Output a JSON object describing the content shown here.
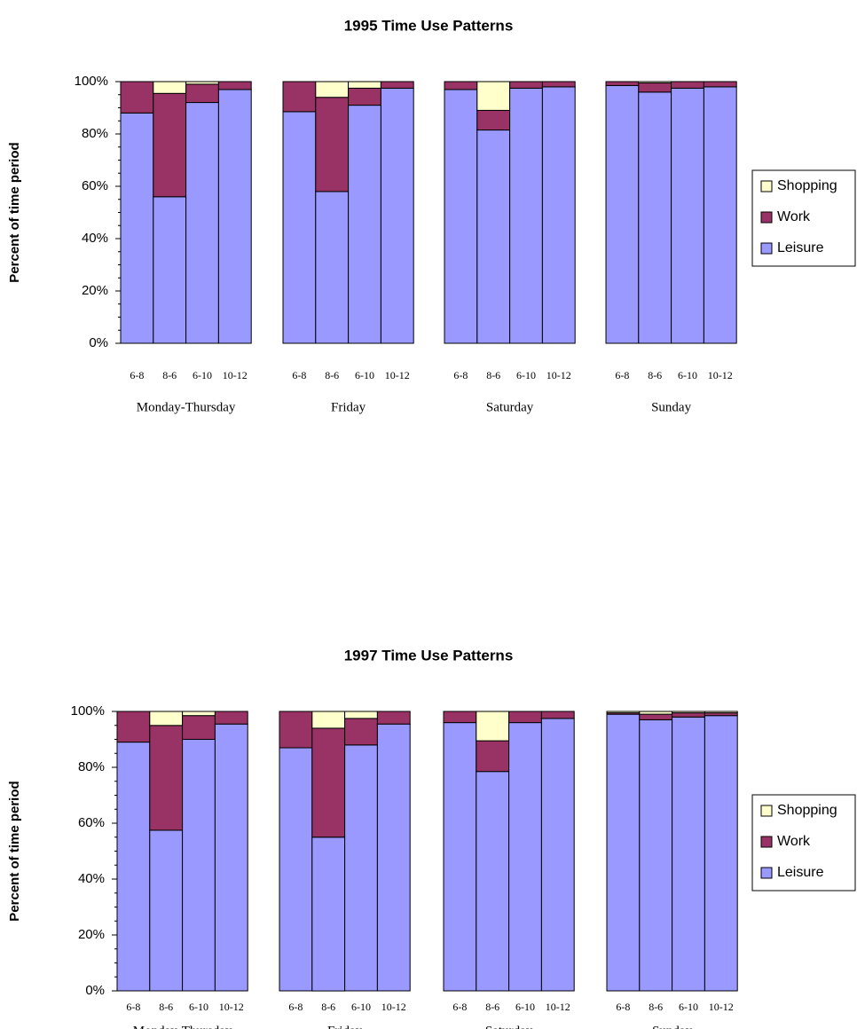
{
  "chart_data": [
    {
      "type": "bar",
      "stacked": true,
      "percent": true,
      "title": "1995 Time Use Patterns",
      "ylabel": "Percent of time period",
      "ylim": [
        0,
        100
      ],
      "yticks": [
        "0%",
        "20%",
        "40%",
        "60%",
        "80%",
        "100%"
      ],
      "legend_position": "right",
      "groups": [
        {
          "name": "Monday-Thursday",
          "categories": [
            "6-8",
            "8-6",
            "6-10",
            "10-12"
          ]
        },
        {
          "name": "Friday",
          "categories": [
            "6-8",
            "8-6",
            "6-10",
            "10-12"
          ]
        },
        {
          "name": "Saturday",
          "categories": [
            "6-8",
            "8-6",
            "6-10",
            "10-12"
          ]
        },
        {
          "name": "Sunday",
          "categories": [
            "6-8",
            "8-6",
            "6-10",
            "10-12"
          ]
        }
      ],
      "series": [
        {
          "name": "Leisure",
          "color": "#9999FF",
          "values": [
            [
              88,
              56,
              92,
              97
            ],
            [
              88.5,
              58,
              91,
              97.5
            ],
            [
              97,
              81.5,
              97.5,
              98
            ],
            [
              98.5,
              96,
              97.5,
              98
            ]
          ]
        },
        {
          "name": "Work",
          "color": "#993366",
          "values": [
            [
              12,
              39.5,
              7,
              3
            ],
            [
              11.5,
              36,
              6.5,
              2.5
            ],
            [
              3,
              7.5,
              2.5,
              2
            ],
            [
              1.5,
              3.5,
              2.5,
              2
            ]
          ]
        },
        {
          "name": "Shopping",
          "color": "#FFFFCC",
          "values": [
            [
              0,
              4.5,
              1,
              0
            ],
            [
              0,
              6,
              2.5,
              0
            ],
            [
              0,
              11,
              0,
              0
            ],
            [
              0,
              0.5,
              0,
              0
            ]
          ]
        }
      ]
    },
    {
      "type": "bar",
      "stacked": true,
      "percent": true,
      "title": "1997 Time Use Patterns",
      "ylabel": "Percent of time period",
      "ylim": [
        0,
        100
      ],
      "yticks": [
        "0%",
        "20%",
        "40%",
        "60%",
        "80%",
        "100%"
      ],
      "legend_position": "right",
      "groups": [
        {
          "name": "Monday-Thursday",
          "categories": [
            "6-8",
            "8-6",
            "6-10",
            "10-12"
          ]
        },
        {
          "name": "Friday",
          "categories": [
            "6-8",
            "8-6",
            "6-10",
            "10-12"
          ]
        },
        {
          "name": "Saturday",
          "categories": [
            "6-8",
            "8-6",
            "6-10",
            "10-12"
          ]
        },
        {
          "name": "Sunday",
          "categories": [
            "6-8",
            "8-6",
            "6-10",
            "10-12"
          ]
        }
      ],
      "series": [
        {
          "name": "Leisure",
          "color": "#9999FF",
          "values": [
            [
              89,
              57.5,
              90,
              95.5
            ],
            [
              87,
              55,
              88,
              95.5
            ],
            [
              96,
              78.5,
              96,
              97.5
            ],
            [
              99,
              97,
              98,
              98.5
            ]
          ]
        },
        {
          "name": "Work",
          "color": "#993366",
          "values": [
            [
              11,
              37.5,
              8.5,
              4.5
            ],
            [
              13,
              39,
              9.5,
              4.5
            ],
            [
              4,
              11,
              4,
              2.5
            ],
            [
              0.5,
              2,
              1.5,
              1
            ]
          ]
        },
        {
          "name": "Shopping",
          "color": "#FFFFCC",
          "values": [
            [
              0,
              5,
              1.5,
              0
            ],
            [
              0,
              6,
              2.5,
              0
            ],
            [
              0,
              10.5,
              0,
              0
            ],
            [
              0.5,
              1,
              0.5,
              0.5
            ]
          ]
        }
      ]
    }
  ]
}
